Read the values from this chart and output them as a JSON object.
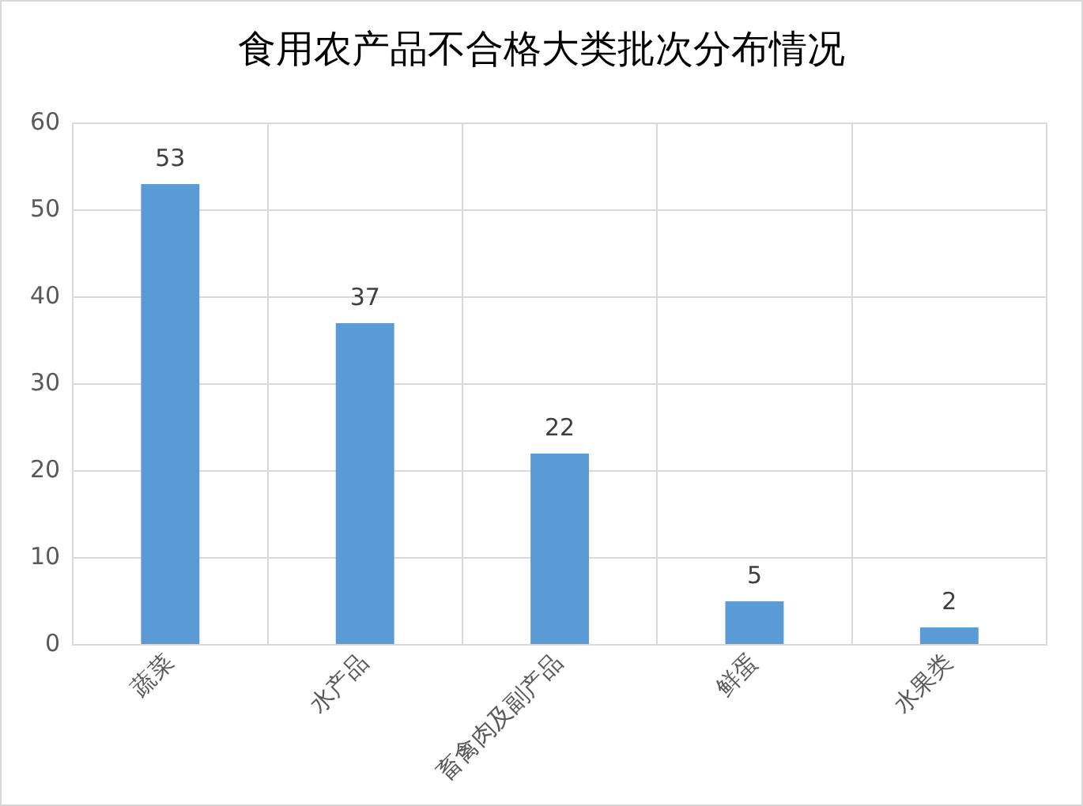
{
  "chart_data": {
    "type": "bar",
    "title": "食用农产品不合格大类批次分布情况",
    "categories": [
      "蔬菜",
      "水产品",
      "畜禽肉及副产品",
      "鲜蛋",
      "水果类"
    ],
    "values": [
      53,
      37,
      22,
      5,
      2
    ],
    "color": "#5b9bd5",
    "ylim": [
      0,
      60
    ],
    "yticks": [
      0,
      10,
      20,
      30,
      40,
      50,
      60
    ],
    "grid": true,
    "data_labels": true
  }
}
